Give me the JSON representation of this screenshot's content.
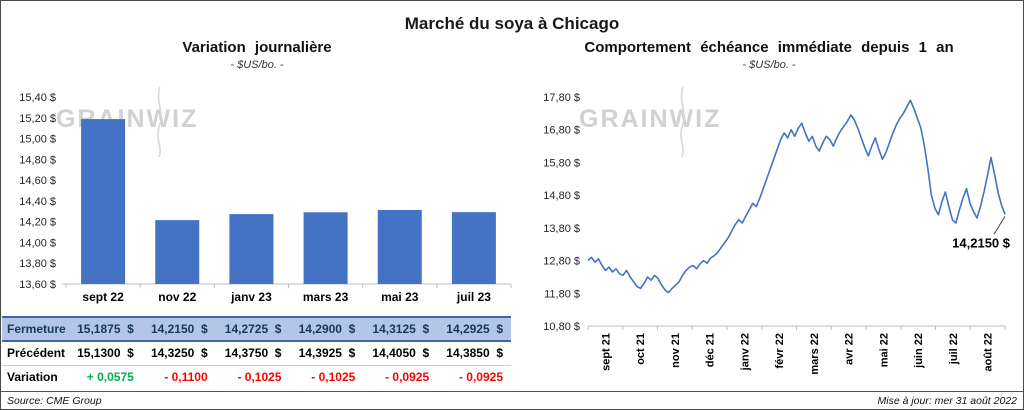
{
  "page_title": "Marché du soya à Chicago",
  "watermark_text": "GRAINWIZ",
  "footer": {
    "source": "Source: CME Group",
    "updated": "Mise à jour: mer 31 août 2022"
  },
  "chart_data": [
    {
      "type": "bar",
      "title": "Variation journalière",
      "subtitle": "- $US/bo. -",
      "categories": [
        "sept 22",
        "nov 22",
        "janv 23",
        "mars 23",
        "mai 23",
        "juil 23"
      ],
      "values": [
        15.1875,
        14.215,
        14.2725,
        14.29,
        14.3125,
        14.2925
      ],
      "ylim": [
        13.6,
        15.4
      ],
      "ytick_values": [
        15.4,
        15.2,
        15.0,
        14.8,
        14.6,
        14.4,
        14.2,
        14.0,
        13.8,
        13.6
      ],
      "ytick_labels": [
        "15,40 $",
        "15,20 $",
        "15,00 $",
        "14,80 $",
        "14,60 $",
        "14,40 $",
        "14,20 $",
        "14,00 $",
        "13,80 $",
        "13,60 $"
      ],
      "bar_color": "#4472C4",
      "grid": false,
      "legend": "none",
      "xlabel": "",
      "ylabel": ""
    },
    {
      "type": "line",
      "title": "Comportement échéance immédiate depuis 1 an",
      "subtitle": "- $US/bo. -",
      "x_labels": [
        "sept 21",
        "oct 21",
        "nov 21",
        "déc 21",
        "janv 22",
        "févr 22",
        "mars 22",
        "avr 22",
        "mai 22",
        "juin 22",
        "juil 22",
        "août 22"
      ],
      "ylim": [
        10.8,
        17.8
      ],
      "ytick_values": [
        17.8,
        16.8,
        15.8,
        14.8,
        13.8,
        12.8,
        11.8,
        10.8
      ],
      "ytick_labels": [
        "17,80 $",
        "16,80 $",
        "15,80 $",
        "14,80 $",
        "13,80 $",
        "12,80 $",
        "11,80 $",
        "10,80 $"
      ],
      "line_color": "#4472C4",
      "annotation": "14,2150 $",
      "last_value": 14.215,
      "grid": false,
      "legend": "none",
      "values": [
        12.8,
        12.9,
        12.75,
        12.85,
        12.65,
        12.5,
        12.6,
        12.45,
        12.55,
        12.4,
        12.35,
        12.5,
        12.3,
        12.15,
        12.0,
        11.95,
        12.1,
        12.3,
        12.2,
        12.35,
        12.25,
        12.05,
        11.9,
        11.82,
        11.95,
        12.05,
        12.15,
        12.35,
        12.5,
        12.6,
        12.65,
        12.55,
        12.7,
        12.8,
        12.72,
        12.88,
        12.95,
        13.05,
        13.2,
        13.35,
        13.5,
        13.7,
        13.9,
        14.05,
        13.95,
        14.15,
        14.35,
        14.55,
        14.45,
        14.7,
        15.0,
        15.3,
        15.6,
        15.9,
        16.2,
        16.5,
        16.7,
        16.55,
        16.8,
        16.6,
        16.85,
        17.0,
        16.7,
        16.45,
        16.6,
        16.3,
        16.15,
        16.4,
        16.6,
        16.5,
        16.3,
        16.55,
        16.75,
        16.9,
        17.05,
        17.25,
        17.1,
        16.85,
        16.55,
        16.25,
        16.0,
        16.3,
        16.55,
        16.2,
        15.9,
        16.1,
        16.4,
        16.7,
        16.95,
        17.15,
        17.3,
        17.5,
        17.7,
        17.45,
        17.15,
        16.85,
        16.3,
        15.6,
        14.8,
        14.4,
        14.2,
        14.6,
        14.9,
        14.45,
        14.05,
        13.95,
        14.35,
        14.7,
        15.0,
        14.55,
        14.3,
        14.1,
        14.45,
        14.9,
        15.4,
        15.95,
        15.45,
        14.9,
        14.5,
        14.215
      ]
    }
  ],
  "table": {
    "rows": [
      {
        "key": "fermeture",
        "label": "Fermeture",
        "values": [
          "15,1875  $",
          "14,2150  $",
          "14,2725  $",
          "14,2900  $",
          "14,3125  $",
          "14,2925  $"
        ]
      },
      {
        "key": "precedent",
        "label": "Précédent",
        "values": [
          "15,1300  $",
          "14,3250  $",
          "14,3750  $",
          "14,3925  $",
          "14,4050  $",
          "14,3850  $"
        ]
      },
      {
        "key": "variation",
        "label": "Variation",
        "values": [
          "+ 0,0575",
          "- 0,1100",
          "- 0,1025",
          "- 0,1025",
          "- 0,0925",
          "- 0,0925"
        ],
        "value_colors": [
          "#00B050",
          "#FF0000",
          "#FF0000",
          "#FF0000",
          "#FF0000",
          "#FF0000"
        ]
      }
    ]
  }
}
